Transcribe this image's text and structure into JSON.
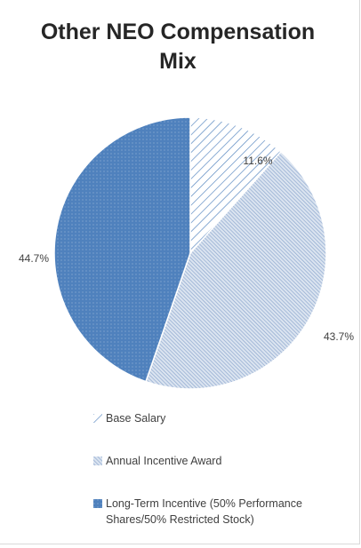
{
  "chart_data": {
    "type": "pie",
    "title_lines": [
      "Other NEO Compensation",
      "Mix"
    ],
    "slices": [
      {
        "label": "Base Salary",
        "value": 11.6,
        "value_label": "11.6%",
        "color": "#4f81bd",
        "pattern": "wide-diagonal-stripes"
      },
      {
        "label": "Annual Incentive Award",
        "value": 43.7,
        "value_label": "43.7%",
        "color": "#4f81bd",
        "pattern": "dense-diagonal-hatch"
      },
      {
        "label": "Long-Term Incentive (50% Performance Shares/50% Restricted Stock)",
        "value": 44.7,
        "value_label": "44.7%",
        "color": "#4f81bd",
        "pattern": "dotted-solid"
      }
    ],
    "legend_position": "bottom",
    "start_angle": "12 o'clock",
    "direction": "clockwise"
  }
}
